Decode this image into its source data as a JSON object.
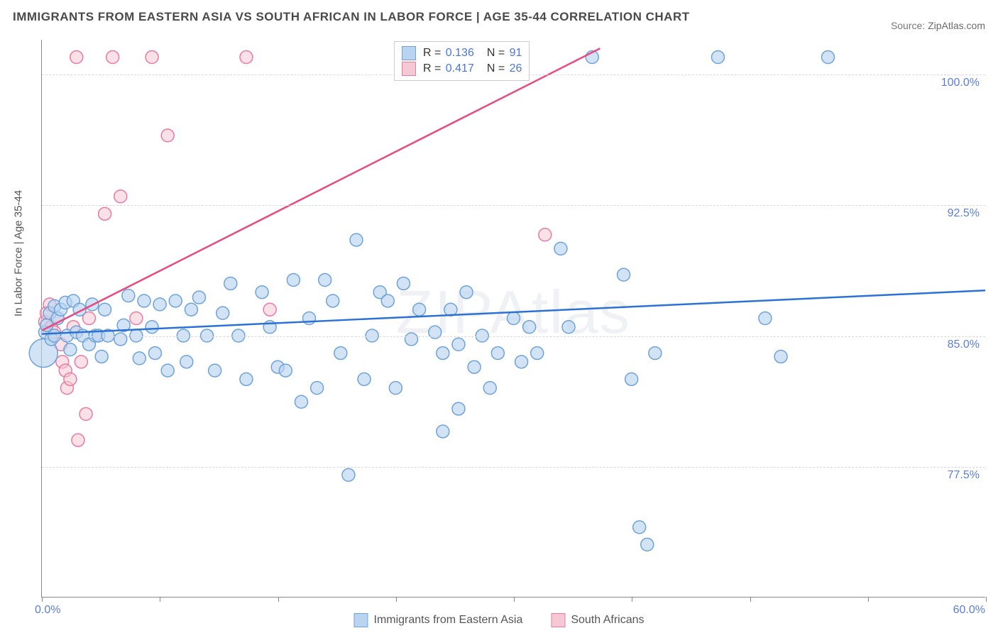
{
  "title": "IMMIGRANTS FROM EASTERN ASIA VS SOUTH AFRICAN IN LABOR FORCE | AGE 35-44 CORRELATION CHART",
  "source_label": "Source:",
  "source_value": "ZipAtlas.com",
  "watermark": "ZIPAtlas",
  "y_axis_title": "In Labor Force | Age 35-44",
  "chart": {
    "type": "scatter-with-regression",
    "background_color": "#ffffff",
    "grid_color": "#d9d9d9",
    "axis_color": "#888888",
    "xlim": [
      0,
      60
    ],
    "ylim": [
      70,
      102
    ],
    "x_unit": "%",
    "y_unit": "%",
    "x_ticks": [
      0,
      7.5,
      15,
      22.5,
      30,
      37.5,
      45,
      52.5,
      60
    ],
    "x_tick_labels": {
      "0": "0.0%",
      "60": "60.0%"
    },
    "y_ticks": [
      77.5,
      85.0,
      92.5,
      100.0
    ],
    "y_tick_labels": [
      "77.5%",
      "85.0%",
      "92.5%",
      "100.0%"
    ],
    "tick_label_color": "#5b7fd6",
    "tick_label_fontsize": 16,
    "series": [
      {
        "key": "eastern_asia",
        "label": "Immigrants from Eastern Asia",
        "marker_fill": "#b9d4f0",
        "marker_stroke": "#6fa3d8",
        "marker_fill_opacity": 0.65,
        "marker_radius": 9,
        "line_color": "#2b72d4",
        "line_width": 2.5,
        "stats": {
          "R": "0.136",
          "N": "91"
        },
        "regression": {
          "x1": 0,
          "y1": 85.1,
          "x2": 60,
          "y2": 87.6
        },
        "points": [
          [
            0.2,
            85.2
          ],
          [
            0.3,
            85.6
          ],
          [
            0.5,
            86.3
          ],
          [
            0.6,
            84.8
          ],
          [
            0.8,
            86.7
          ],
          [
            0.8,
            85.0
          ],
          [
            1.0,
            86.0
          ],
          [
            1.2,
            86.5
          ],
          [
            1.5,
            86.9
          ],
          [
            1.6,
            85.0
          ],
          [
            1.8,
            84.2
          ],
          [
            2.0,
            87.0
          ],
          [
            2.2,
            85.2
          ],
          [
            2.4,
            86.5
          ],
          [
            2.6,
            85.0
          ],
          [
            3.0,
            84.5
          ],
          [
            3.2,
            86.8
          ],
          [
            3.4,
            85.0
          ],
          [
            3.6,
            85.0
          ],
          [
            3.8,
            83.8
          ],
          [
            4.0,
            86.5
          ],
          [
            4.2,
            85.0
          ],
          [
            5.0,
            84.8
          ],
          [
            5.2,
            85.6
          ],
          [
            5.5,
            87.3
          ],
          [
            6.0,
            85.0
          ],
          [
            6.2,
            83.7
          ],
          [
            6.5,
            87.0
          ],
          [
            7.0,
            85.5
          ],
          [
            7.2,
            84.0
          ],
          [
            7.5,
            86.8
          ],
          [
            8.0,
            83.0
          ],
          [
            8.5,
            87.0
          ],
          [
            9.0,
            85.0
          ],
          [
            9.2,
            83.5
          ],
          [
            9.5,
            86.5
          ],
          [
            10.0,
            87.2
          ],
          [
            10.5,
            85.0
          ],
          [
            11.0,
            83.0
          ],
          [
            11.5,
            86.3
          ],
          [
            12.0,
            88.0
          ],
          [
            12.5,
            85.0
          ],
          [
            13.0,
            82.5
          ],
          [
            14.0,
            87.5
          ],
          [
            14.5,
            85.5
          ],
          [
            15.0,
            83.2
          ],
          [
            15.5,
            83.0
          ],
          [
            16.0,
            88.2
          ],
          [
            16.5,
            81.2
          ],
          [
            17.0,
            86.0
          ],
          [
            17.5,
            82.0
          ],
          [
            18.0,
            88.2
          ],
          [
            18.5,
            87.0
          ],
          [
            19.0,
            84.0
          ],
          [
            19.5,
            77.0
          ],
          [
            20.0,
            90.5
          ],
          [
            20.5,
            82.5
          ],
          [
            21.0,
            85.0
          ],
          [
            21.5,
            87.5
          ],
          [
            22.0,
            87.0
          ],
          [
            22.5,
            82.0
          ],
          [
            23.0,
            88.0
          ],
          [
            23.5,
            84.8
          ],
          [
            24.0,
            86.5
          ],
          [
            25.0,
            85.2
          ],
          [
            25.5,
            84.0
          ],
          [
            25.5,
            79.5
          ],
          [
            26.0,
            86.5
          ],
          [
            26.5,
            84.5
          ],
          [
            26.5,
            80.8
          ],
          [
            27.0,
            87.5
          ],
          [
            27.5,
            83.2
          ],
          [
            28.0,
            85.0
          ],
          [
            28.5,
            82.0
          ],
          [
            29.0,
            84.0
          ],
          [
            30.0,
            86.0
          ],
          [
            30.5,
            83.5
          ],
          [
            31.0,
            85.5
          ],
          [
            31.5,
            84.0
          ],
          [
            33.0,
            90.0
          ],
          [
            33.5,
            85.5
          ],
          [
            35.0,
            101.0
          ],
          [
            37.0,
            88.5
          ],
          [
            37.5,
            82.5
          ],
          [
            38.0,
            74.0
          ],
          [
            38.5,
            73.0
          ],
          [
            39.0,
            84.0
          ],
          [
            43.0,
            101.0
          ],
          [
            46.0,
            86.0
          ],
          [
            47.0,
            83.8
          ],
          [
            50.0,
            101.0
          ]
        ],
        "big_points": [
          [
            0.1,
            84.0,
            20
          ]
        ]
      },
      {
        "key": "south_africans",
        "label": "South Africans",
        "marker_fill": "#f6c7d4",
        "marker_stroke": "#e87ba0",
        "marker_fill_opacity": 0.55,
        "marker_radius": 9,
        "line_color": "#e64b82",
        "line_width": 2.5,
        "stats": {
          "R": "0.417",
          "N": "26"
        },
        "regression": {
          "x1": 0,
          "y1": 85.3,
          "x2": 35.5,
          "y2": 101.5
        },
        "points": [
          [
            0.2,
            85.8
          ],
          [
            0.3,
            86.3
          ],
          [
            0.5,
            86.8
          ],
          [
            0.6,
            85.5
          ],
          [
            0.8,
            85.2
          ],
          [
            1.0,
            86.0
          ],
          [
            1.2,
            84.5
          ],
          [
            1.3,
            83.5
          ],
          [
            1.5,
            83.0
          ],
          [
            1.6,
            82.0
          ],
          [
            1.8,
            82.5
          ],
          [
            2.0,
            85.5
          ],
          [
            2.2,
            101.0
          ],
          [
            2.3,
            79.0
          ],
          [
            2.5,
            83.5
          ],
          [
            2.8,
            80.5
          ],
          [
            3.0,
            86.0
          ],
          [
            4.0,
            92.0
          ],
          [
            4.5,
            101.0
          ],
          [
            5.0,
            93.0
          ],
          [
            6.0,
            86.0
          ],
          [
            7.0,
            101.0
          ],
          [
            8.0,
            96.5
          ],
          [
            13.0,
            101.0
          ],
          [
            14.5,
            86.5
          ],
          [
            32.0,
            90.8
          ]
        ],
        "big_points": []
      }
    ]
  },
  "stats_legend_labels": {
    "R": "R =",
    "N": "N ="
  },
  "bottom_legend": [
    {
      "label": "Immigrants from Eastern Asia",
      "fill": "#b9d4f0",
      "stroke": "#6fa3d8"
    },
    {
      "label": "South Africans",
      "fill": "#f6c7d4",
      "stroke": "#e87ba0"
    }
  ],
  "colors": {
    "title_text": "#4a4a4a",
    "source_text": "#777777"
  }
}
